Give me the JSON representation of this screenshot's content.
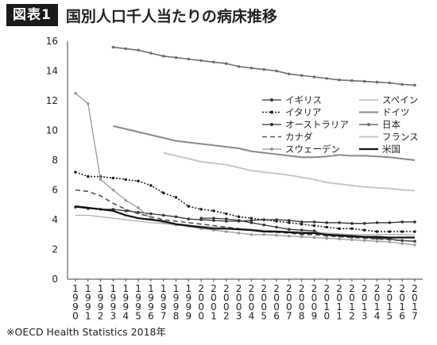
{
  "figure": {
    "badge": "図表1",
    "title": "国別人口千人当たりの病床推移",
    "source": "※OECD Health Statistics 2018年"
  },
  "chart_data": {
    "type": "line",
    "title": "国別人口千人当たりの病床推移",
    "xlabel": "",
    "ylabel": "",
    "ylim": [
      0,
      16
    ],
    "yticks": [
      0,
      2,
      4,
      6,
      8,
      10,
      12,
      14,
      16
    ],
    "grid": false,
    "legend_position": "center-right",
    "categories": [
      "1990",
      "1991",
      "1992",
      "1993",
      "1994",
      "1995",
      "1996",
      "1997",
      "1998",
      "1999",
      "2000",
      "2001",
      "2002",
      "2003",
      "2004",
      "2005",
      "2006",
      "2007",
      "2008",
      "2009",
      "2010",
      "2011",
      "2012",
      "2013",
      "2014",
      "2015",
      "2016",
      "2017"
    ],
    "series": [
      {
        "name": "イギリス",
        "color": "#333333",
        "dash": "",
        "marker": true,
        "width": 1.3,
        "values": [
          null,
          null,
          null,
          null,
          null,
          null,
          null,
          null,
          null,
          null,
          4.1,
          4.1,
          4.05,
          3.95,
          3.8,
          3.65,
          3.5,
          3.35,
          3.3,
          3.25,
          2.95,
          2.9,
          2.85,
          2.8,
          2.75,
          2.7,
          2.6,
          2.55
        ]
      },
      {
        "name": "スペイン",
        "color": "#b0b0b0",
        "dash": "",
        "marker": false,
        "width": 1.3,
        "values": [
          4.3,
          4.3,
          4.2,
          4.1,
          4.0,
          3.9,
          3.8,
          3.75,
          3.65,
          3.6,
          3.55,
          3.5,
          3.45,
          3.4,
          3.35,
          3.3,
          3.25,
          3.2,
          3.2,
          3.15,
          3.1,
          3.05,
          3.0,
          3.0,
          3.0,
          3.0,
          3.0,
          2.97
        ]
      },
      {
        "name": "イタリア",
        "color": "#222222",
        "dash": "2,2",
        "marker": true,
        "width": 1.6,
        "values": [
          7.2,
          6.9,
          6.9,
          6.8,
          6.7,
          6.6,
          6.3,
          5.8,
          5.5,
          4.9,
          4.7,
          4.6,
          4.4,
          4.2,
          4.1,
          4.0,
          3.9,
          3.8,
          3.7,
          3.6,
          3.5,
          3.4,
          3.4,
          3.3,
          3.2,
          3.2,
          3.2,
          3.2
        ]
      },
      {
        "name": "ドイツ",
        "color": "#8a8a8a",
        "dash": "",
        "marker": false,
        "width": 2.0,
        "values": [
          null,
          null,
          null,
          10.3,
          10.1,
          9.9,
          9.7,
          9.5,
          9.3,
          9.2,
          9.1,
          9.0,
          8.9,
          8.8,
          8.6,
          8.5,
          8.4,
          8.3,
          8.2,
          8.2,
          8.25,
          8.35,
          8.3,
          8.3,
          8.25,
          8.2,
          8.1,
          8.0
        ]
      },
      {
        "name": "オーストラリア",
        "color": "#333333",
        "dash": "",
        "marker": true,
        "width": 1.3,
        "values": [
          4.85,
          4.75,
          4.7,
          4.7,
          4.6,
          4.5,
          4.4,
          4.3,
          4.2,
          4.05,
          4.0,
          3.95,
          3.9,
          3.9,
          3.95,
          4.0,
          4.0,
          3.95,
          3.85,
          3.85,
          3.8,
          3.8,
          3.75,
          3.75,
          3.8,
          3.8,
          3.85,
          3.85
        ]
      },
      {
        "name": "日本",
        "color": "#6e6e6e",
        "dash": "",
        "marker": true,
        "width": 1.6,
        "values": [
          null,
          null,
          null,
          15.6,
          15.5,
          15.4,
          15.2,
          15.0,
          14.9,
          14.8,
          14.7,
          14.6,
          14.5,
          14.3,
          14.2,
          14.1,
          14.0,
          13.8,
          13.7,
          13.6,
          13.5,
          13.4,
          13.35,
          13.3,
          13.25,
          13.2,
          13.1,
          13.05
        ]
      },
      {
        "name": "カナダ",
        "color": "#555555",
        "dash": "6,4",
        "marker": false,
        "width": 1.6,
        "values": [
          6.0,
          5.9,
          5.6,
          5.1,
          4.7,
          4.4,
          4.2,
          4.0,
          3.9,
          3.8,
          3.7,
          3.6,
          3.5,
          3.4,
          3.3,
          3.2,
          3.15,
          3.1,
          3.0,
          3.0,
          2.9,
          2.85,
          2.8,
          2.75,
          2.7,
          2.65,
          2.6,
          2.55
        ]
      },
      {
        "name": "フランス",
        "color": "#c8c8c8",
        "dash": "",
        "marker": false,
        "width": 2.0,
        "values": [
          null,
          null,
          null,
          null,
          null,
          null,
          null,
          8.5,
          8.3,
          8.1,
          7.9,
          7.8,
          7.7,
          7.5,
          7.3,
          7.2,
          7.1,
          7.0,
          6.85,
          6.7,
          6.5,
          6.4,
          6.3,
          6.2,
          6.15,
          6.1,
          6.0,
          5.95
        ]
      },
      {
        "name": "スウェーデン",
        "color": "#9a9a9a",
        "dash": "",
        "marker": true,
        "width": 1.3,
        "values": [
          12.5,
          11.8,
          6.7,
          6.0,
          5.3,
          4.8,
          4.1,
          3.8,
          3.65,
          3.55,
          3.4,
          3.3,
          3.2,
          3.1,
          3.0,
          3.0,
          2.95,
          2.9,
          2.85,
          2.8,
          2.75,
          2.7,
          2.65,
          2.6,
          2.55,
          2.5,
          2.4,
          2.3
        ]
      },
      {
        "name": "米国",
        "color": "#111111",
        "dash": "",
        "marker": false,
        "width": 2.2,
        "values": [
          4.9,
          4.8,
          4.7,
          4.6,
          4.3,
          4.1,
          4.0,
          3.9,
          3.7,
          3.6,
          3.5,
          3.4,
          3.4,
          3.35,
          3.3,
          3.2,
          3.2,
          3.15,
          3.1,
          3.1,
          3.0,
          2.95,
          2.9,
          2.85,
          2.85,
          2.8,
          2.8,
          2.8
        ]
      }
    ]
  }
}
